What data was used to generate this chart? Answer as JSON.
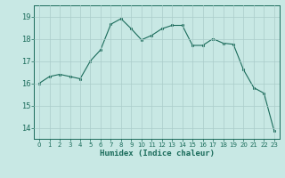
{
  "x": [
    0,
    1,
    2,
    3,
    4,
    5,
    6,
    7,
    8,
    9,
    10,
    11,
    12,
    13,
    14,
    15,
    16,
    17,
    18,
    19,
    20,
    21,
    22,
    23
  ],
  "y": [
    16.0,
    16.3,
    16.4,
    16.3,
    16.2,
    17.0,
    17.5,
    18.65,
    18.9,
    18.45,
    17.95,
    18.15,
    18.45,
    18.6,
    18.6,
    17.7,
    17.7,
    18.0,
    17.8,
    17.75,
    16.6,
    15.8,
    15.55,
    13.85
  ],
  "line_color": "#1a6b5a",
  "marker_color": "#1a6b5a",
  "bg_color": "#c8e8e4",
  "grid_color": "#aaccca",
  "axis_color": "#1a6b5a",
  "xlabel": "Humidex (Indice chaleur)",
  "ylim": [
    13.5,
    19.5
  ],
  "yticks": [
    14,
    15,
    16,
    17,
    18,
    19
  ],
  "xlim": [
    -0.5,
    23.5
  ],
  "xticks": [
    0,
    1,
    2,
    3,
    4,
    5,
    6,
    7,
    8,
    9,
    10,
    11,
    12,
    13,
    14,
    15,
    16,
    17,
    18,
    19,
    20,
    21,
    22,
    23
  ]
}
